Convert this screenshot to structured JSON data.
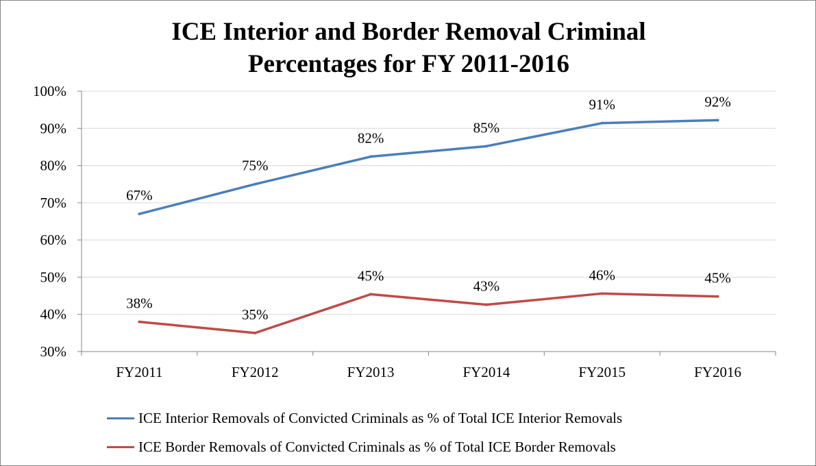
{
  "chart_data": {
    "type": "line",
    "title": [
      "ICE Interior and Border Removal Criminal",
      "Percentages for FY 2011-2016"
    ],
    "categories": [
      "FY2011",
      "FY2012",
      "FY2013",
      "FY2014",
      "FY2015",
      "FY2016"
    ],
    "ylim": [
      30,
      100
    ],
    "yticks": [
      "30%",
      "40%",
      "50%",
      "60%",
      "70%",
      "80%",
      "90%",
      "100%"
    ],
    "grid": true,
    "legend_position": "bottom",
    "series": [
      {
        "name": "ICE Interior Removals of Convicted Criminals as % of Total ICE Interior Removals",
        "color": "#4A7EBB",
        "values": [
          67,
          75,
          82.4,
          85.2,
          91.4,
          92.2
        ],
        "labels": [
          "67%",
          "75%",
          "82%",
          "85%",
          "91%",
          "92%"
        ]
      },
      {
        "name": "ICE Border Removals of Convicted Criminals as % of Total ICE Border Removals",
        "color": "#BE4B48",
        "values": [
          38,
          35,
          45.4,
          42.6,
          45.6,
          44.8
        ],
        "labels": [
          "38%",
          "35%",
          "45%",
          "43%",
          "46%",
          "45%"
        ]
      }
    ]
  }
}
